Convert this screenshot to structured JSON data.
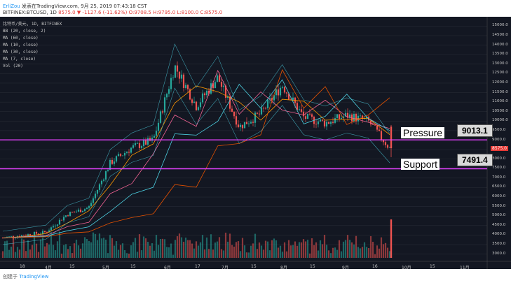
{
  "header": {
    "author": "ErliZou",
    "published_text": "发表在TradingView.com, 9月 25, 2019 07:43:18 CST",
    "symbol_line": "BITFINEX:BTCUSD, 1D",
    "ohlc": {
      "last": "8575.0",
      "change": "▼ -1127.6 (-11.62%)",
      "open": "O:9708.5",
      "high": "H:9795.0",
      "low": "L:8100.0",
      "close": "C:8575.0"
    }
  },
  "chart_title": "比特币/美元, 1D, BITFINEX",
  "indicators": [
    "BB (20, close, 2)",
    "MA (60, close)",
    "MA (10, close)",
    "MA (30, close)",
    "MA (7, close)",
    "Vol (20)"
  ],
  "annotations": {
    "pressure_label": "Pressure",
    "pressure_value": "9013.1",
    "support_label": "Support",
    "support_value": "7491.4",
    "price_tag": "8575.0"
  },
  "footer": {
    "created_with": "创建于",
    "brand": "TradingView"
  },
  "colors": {
    "background": "#131722",
    "up": "#26a69a",
    "down": "#ef5350",
    "line": "#e040fb"
  },
  "chart_data": {
    "type": "line",
    "title": "比特币/美元, 1D, BITFINEX",
    "y_ticks": [
      3000,
      3500,
      4000,
      4500,
      5000,
      5500,
      6000,
      6500,
      7000,
      7500,
      8000,
      8500,
      9000,
      9500,
      10000,
      10500,
      11000,
      11500,
      12000,
      12500,
      13000,
      13500,
      14000,
      14500,
      15000
    ],
    "y_tick_labels": [
      "3000.0",
      "3500.0",
      "4000.0",
      "4500.0",
      "5000.0",
      "5500.0",
      "6000.0",
      "6500.0",
      "7000.0",
      "7500.0",
      "8000.0",
      "8500.0",
      "9000.0",
      "9500.0",
      "10000.0",
      "10500.0",
      "11000.0",
      "11500.0",
      "12000.0",
      "12500.0",
      "13000.0",
      "13500.0",
      "14000.0",
      "14500.0",
      "15000.0"
    ],
    "x_tick_labels": [
      "18",
      "4月",
      "15",
      "5月",
      "15",
      "6月",
      "17",
      "7月",
      "15",
      "8月",
      "15",
      "9月",
      "16",
      "10月",
      "15",
      "11月"
    ],
    "ylim": [
      2800,
      15200
    ],
    "horizontal_levels": [
      9013.1,
      7491.4
    ],
    "series": [
      {
        "x": [
          "2019-03-04",
          "2019-03-18",
          "2019-04-01",
          "2019-04-15",
          "2019-05-01",
          "2019-05-15",
          "2019-06-01",
          "2019-06-17",
          "2019-06-26",
          "2019-07-01",
          "2019-07-10",
          "2019-07-17",
          "2019-08-01",
          "2019-08-06",
          "2019-08-15",
          "2019-09-01",
          "2019-09-16",
          "2019-09-23",
          "2019-09-24"
        ],
        "close": [
          3850,
          4000,
          4150,
          5100,
          5450,
          7800,
          8600,
          9000,
          12900,
          10800,
          12300,
          9700,
          10400,
          11900,
          10200,
          9900,
          10300,
          10000,
          8575
        ]
      }
    ]
  }
}
